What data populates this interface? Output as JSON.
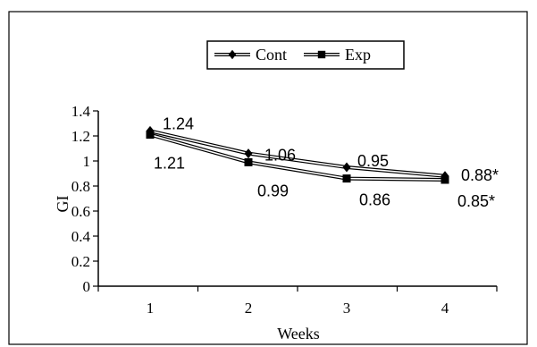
{
  "chart_data": {
    "type": "line",
    "title": "",
    "xlabel": "Weeks",
    "ylabel": "GI",
    "categories": [
      "1",
      "2",
      "3",
      "4"
    ],
    "ylim": [
      0,
      1.4
    ],
    "yticks": [
      "0",
      "0.2",
      "0.4",
      "0.6",
      "0.8",
      "1",
      "1.2",
      "1.4"
    ],
    "grid": false,
    "legend_position": "top-center",
    "series": [
      {
        "name": "Cont",
        "marker": "diamond",
        "values": [
          1.24,
          1.06,
          0.95,
          0.88
        ],
        "labels": [
          "1.24",
          "1.06",
          "0.95",
          "0.88*"
        ]
      },
      {
        "name": "Exp",
        "marker": "square",
        "values": [
          1.21,
          0.99,
          0.86,
          0.85
        ],
        "labels": [
          "1.21",
          "0.99",
          "0.86",
          "0.85*"
        ]
      }
    ],
    "colors": {
      "line": "#000000",
      "marker": "#000000",
      "frame": "#000000",
      "background": "#ffffff"
    }
  }
}
